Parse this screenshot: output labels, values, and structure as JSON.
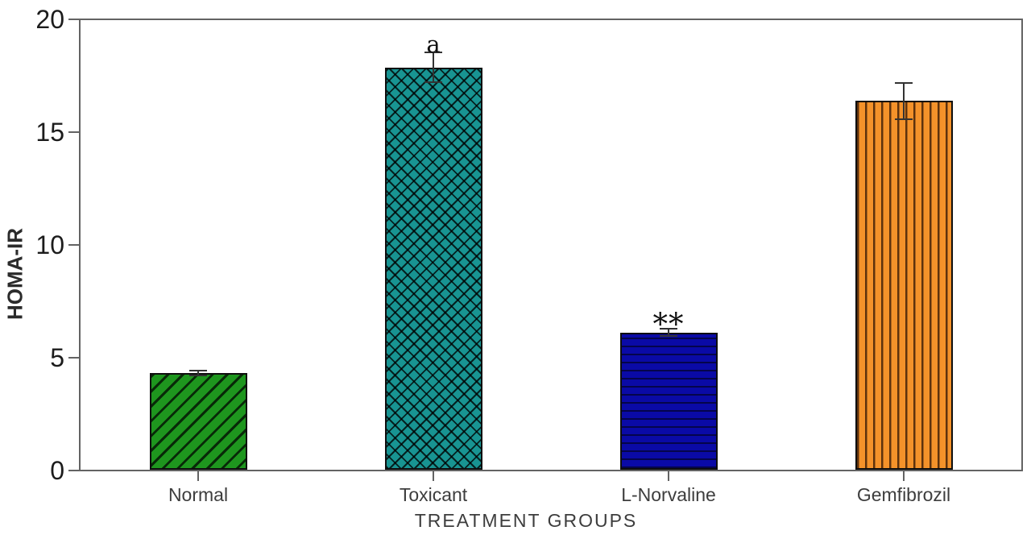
{
  "chart_data": {
    "type": "bar",
    "title": "",
    "categories": [
      "Normal",
      "Toxicant",
      "L-Norvaline",
      "Gemfibrozil"
    ],
    "values": [
      4.3,
      17.9,
      6.1,
      16.4
    ],
    "errors": [
      0.15,
      0.7,
      0.2,
      0.85
    ],
    "annotations": [
      "",
      "a",
      "**",
      ""
    ],
    "bar_colors": [
      "#1e961e",
      "#189492",
      "#0a0aa6",
      "#f4922a"
    ],
    "bar_hatches": [
      "diagonal",
      "cross",
      "horizontal",
      "vertical"
    ],
    "xlabel": "TREATMENT GROUPS",
    "ylabel": "HOMA-IR",
    "ylim": [
      0,
      20
    ],
    "yticks": [
      0,
      5,
      10,
      15,
      20
    ],
    "grid": false,
    "legend": null,
    "plot_border": "full-box",
    "axis_color": "#636363"
  }
}
